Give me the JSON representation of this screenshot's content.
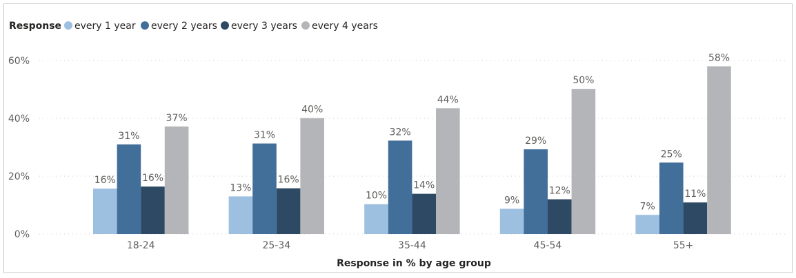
{
  "chart_data": {
    "type": "bar",
    "legend_title": "Response",
    "legend_position": "top-left",
    "categories": [
      "18-24",
      "25-34",
      "35-44",
      "45-54",
      "55+"
    ],
    "series": [
      {
        "name": "every 1 year",
        "color": "#9dbfe0",
        "values": [
          16,
          13,
          10,
          9,
          7
        ],
        "labels": [
          "16%",
          "13%",
          "10%",
          "9%",
          "7%"
        ],
        "precise": [
          15.7,
          13.0,
          10.3,
          8.7,
          6.6
        ]
      },
      {
        "name": "every 2 years",
        "color": "#426e9a",
        "values": [
          31,
          31,
          32,
          29,
          25
        ],
        "labels": [
          "31%",
          "31%",
          "32%",
          "29%",
          "25%"
        ],
        "precise": [
          31.0,
          31.3,
          32.3,
          29.3,
          24.7
        ]
      },
      {
        "name": "every 3 years",
        "color": "#2e4963",
        "values": [
          16,
          16,
          14,
          12,
          11
        ],
        "labels": [
          "16%",
          "16%",
          "14%",
          "12%",
          "11%"
        ],
        "precise": [
          16.4,
          15.8,
          13.9,
          12.0,
          10.9
        ]
      },
      {
        "name": "every 4 years",
        "color": "#b3b5b8",
        "values": [
          37,
          40,
          44,
          50,
          58
        ],
        "labels": [
          "37%",
          "40%",
          "44%",
          "50%",
          "58%"
        ],
        "precise": [
          37.2,
          40.1,
          43.5,
          50.2,
          58.0
        ]
      }
    ],
    "y_ticks": [
      "0%",
      "20%",
      "40%",
      "60%"
    ],
    "y_tick_values": [
      0,
      20,
      40,
      60
    ],
    "ylim": [
      0,
      60
    ],
    "xlabel": "Response in % by age group",
    "ylabel": "",
    "grid": true
  }
}
